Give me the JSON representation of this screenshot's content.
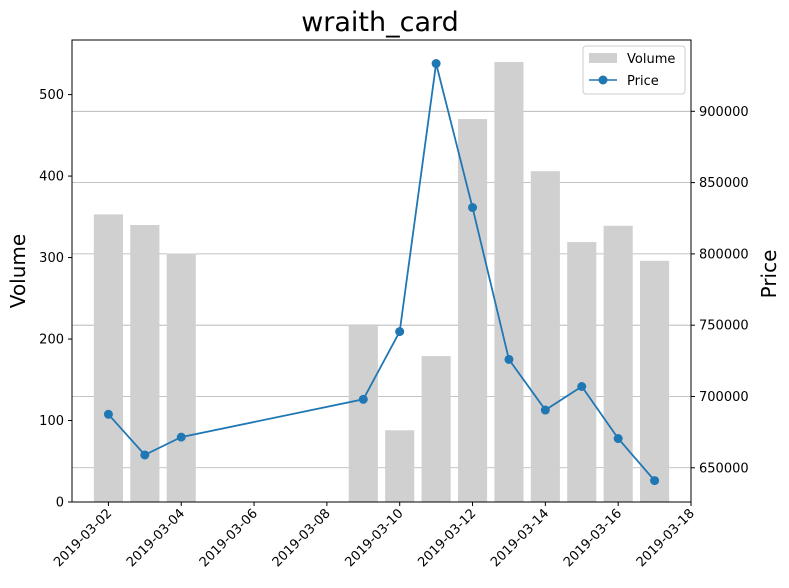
{
  "chart_data": {
    "type": "bar",
    "title": "wraith_card",
    "x": [
      "2019-03-02",
      "2019-03-03",
      "2019-03-04",
      "2019-03-09",
      "2019-03-10",
      "2019-03-11",
      "2019-03-12",
      "2019-03-13",
      "2019-03-14",
      "2019-03-15",
      "2019-03-16",
      "2019-03-17"
    ],
    "series": [
      {
        "name": "Volume",
        "type": "bar",
        "axis": "left",
        "color": "#d0d0d0",
        "values": [
          353,
          340,
          305,
          218,
          88,
          179,
          470,
          540,
          406,
          319,
          339,
          296
        ]
      },
      {
        "name": "Price",
        "type": "line",
        "axis": "right",
        "color": "#1f77b4",
        "marker": "circle",
        "values": [
          687500,
          659000,
          671500,
          698000,
          745500,
          933500,
          832500,
          726000,
          690500,
          707000,
          670500,
          641000
        ]
      }
    ],
    "ylabel": "Volume",
    "ylabel_right": "Price",
    "xlim": [
      "2019-03-01",
      "2019-03-18"
    ],
    "ylim": [
      0,
      567
    ],
    "ylim_right": [
      626000,
      950000
    ],
    "x_ticks": [
      "2019-03-02",
      "2019-03-04",
      "2019-03-06",
      "2019-03-08",
      "2019-03-10",
      "2019-03-12",
      "2019-03-14",
      "2019-03-16",
      "2019-03-18"
    ],
    "y_ticks": [
      0,
      100,
      200,
      300,
      400,
      500
    ],
    "y_ticks_right": [
      650000,
      700000,
      750000,
      800000,
      850000,
      900000
    ],
    "grid": "horizontal lines at the Price ticks",
    "legend_position": "upper-right"
  }
}
